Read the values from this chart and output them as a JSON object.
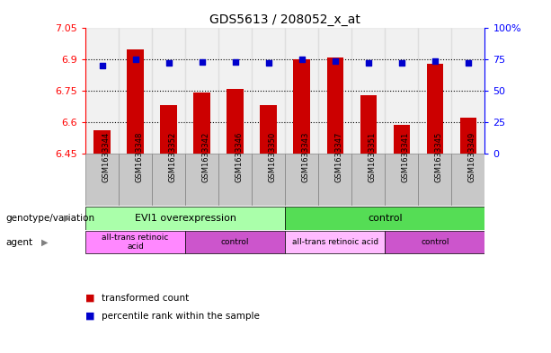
{
  "title": "GDS5613 / 208052_x_at",
  "samples": [
    "GSM1633344",
    "GSM1633348",
    "GSM1633352",
    "GSM1633342",
    "GSM1633346",
    "GSM1633350",
    "GSM1633343",
    "GSM1633347",
    "GSM1633351",
    "GSM1633341",
    "GSM1633345",
    "GSM1633349"
  ],
  "transformed_count": [
    6.56,
    6.95,
    6.68,
    6.74,
    6.76,
    6.68,
    6.9,
    6.91,
    6.73,
    6.585,
    6.88,
    6.62
  ],
  "percentile_rank": [
    70,
    75,
    72,
    73,
    73,
    72,
    75,
    74,
    72,
    72,
    74,
    72
  ],
  "ylim_left": [
    6.45,
    7.05
  ],
  "ylim_right": [
    0,
    100
  ],
  "yticks_left": [
    6.45,
    6.6,
    6.75,
    6.9,
    7.05
  ],
  "yticks_right": [
    0,
    25,
    50,
    75,
    100
  ],
  "ytick_labels_left": [
    "6.45",
    "6.6",
    "6.75",
    "6.9",
    "7.05"
  ],
  "ytick_labels_right": [
    "0",
    "25",
    "50",
    "75",
    "100%"
  ],
  "bar_color": "#cc0000",
  "dot_color": "#0000cc",
  "bar_width": 0.5,
  "genotype_groups": [
    {
      "label": "EVI1 overexpression",
      "start": 0,
      "end": 5,
      "color": "#aaffaa"
    },
    {
      "label": "control",
      "start": 6,
      "end": 11,
      "color": "#55dd55"
    }
  ],
  "agent_groups": [
    {
      "label": "all-trans retinoic\nacid",
      "start": 0,
      "end": 2,
      "color": "#ff88ff"
    },
    {
      "label": "control",
      "start": 3,
      "end": 5,
      "color": "#cc55cc"
    },
    {
      "label": "all-trans retinoic acid",
      "start": 6,
      "end": 8,
      "color": "#ffbbff"
    },
    {
      "label": "control",
      "start": 9,
      "end": 11,
      "color": "#cc55cc"
    }
  ],
  "legend_items": [
    {
      "label": "transformed count",
      "color": "#cc0000"
    },
    {
      "label": "percentile rank within the sample",
      "color": "#0000cc"
    }
  ],
  "bg_color": "#ffffff",
  "sample_bg_color": "#c8c8c8",
  "row_label_genotype": "genotype/variation",
  "row_label_agent": "agent",
  "grid_lines": [
    6.6,
    6.75,
    6.9
  ]
}
